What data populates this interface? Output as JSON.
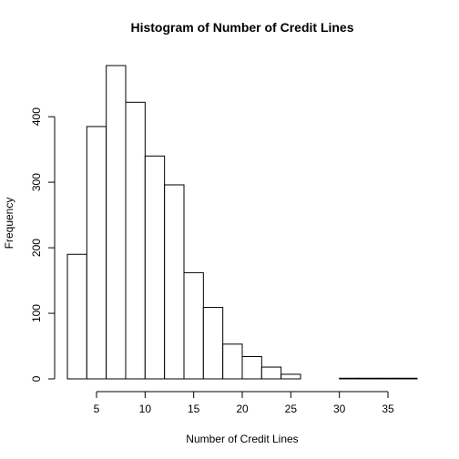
{
  "chart_data": {
    "type": "bar",
    "title": "Histogram of Number of Credit Lines",
    "xlabel": "Number of Credit Lines",
    "ylabel": "Frequency",
    "bin_edges": [
      2,
      4,
      6,
      8,
      10,
      12,
      14,
      16,
      18,
      20,
      22,
      24,
      26,
      28,
      30,
      32,
      34,
      36,
      38
    ],
    "values": [
      190,
      385,
      478,
      422,
      340,
      296,
      162,
      109,
      53,
      34,
      18,
      7,
      0,
      0,
      1,
      1,
      1,
      1
    ],
    "xlim": [
      2,
      38
    ],
    "ylim": [
      0,
      478
    ],
    "x_ticks": [
      "5",
      "10",
      "15",
      "20",
      "25",
      "30",
      "35"
    ],
    "y_ticks": [
      "0",
      "100",
      "200",
      "300",
      "400"
    ],
    "grid": false,
    "legend": "none"
  }
}
